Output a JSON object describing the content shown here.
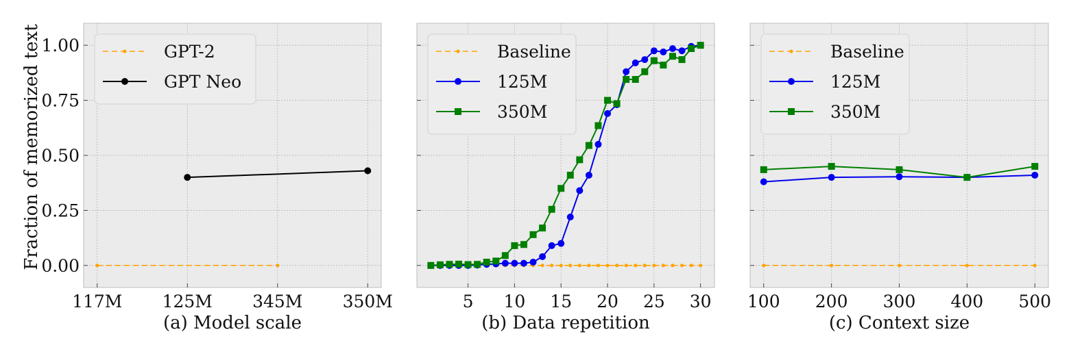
{
  "figure": {
    "ylabel": "Fraction of memorized text",
    "yticks": [
      "1.00",
      "0.75",
      "0.50",
      "0.25",
      "0.00"
    ],
    "ytick_values": [
      1.0,
      0.75,
      0.5,
      0.25,
      0.0
    ],
    "ylim": [
      -0.1,
      1.1
    ]
  },
  "chart_data": [
    {
      "type": "line",
      "title": "(a) Model scale",
      "xlabel": "(a) Model scale",
      "ylabel": "Fraction of memorized text",
      "categories": [
        "117M",
        "125M",
        "345M",
        "350M"
      ],
      "ylim": [
        -0.1,
        1.1
      ],
      "grid": true,
      "legend_position": "top-left",
      "series": [
        {
          "name": "GPT-2",
          "color": "#FFA500",
          "style": "dashed",
          "marker": "dot",
          "x": [
            "117M",
            "345M"
          ],
          "values": [
            0.0,
            0.0
          ]
        },
        {
          "name": "GPT Neo",
          "color": "#000000",
          "style": "solid",
          "marker": "circle",
          "x": [
            "125M",
            "350M"
          ],
          "values": [
            0.4,
            0.43
          ]
        }
      ]
    },
    {
      "type": "line",
      "title": "(b) Data repetition",
      "xlabel": "(b) Data repetition",
      "xticks": [
        "5",
        "10",
        "15",
        "20",
        "25",
        "30"
      ],
      "xtick_values": [
        5,
        10,
        15,
        20,
        25,
        30
      ],
      "xlim": [
        -0.5,
        31.5
      ],
      "ylim": [
        -0.1,
        1.1
      ],
      "grid": true,
      "legend_position": "top-left",
      "x": [
        1,
        2,
        3,
        4,
        5,
        6,
        7,
        8,
        9,
        10,
        11,
        12,
        13,
        14,
        15,
        16,
        17,
        18,
        19,
        20,
        21,
        22,
        23,
        24,
        25,
        26,
        27,
        28,
        29,
        30
      ],
      "series": [
        {
          "name": "Baseline",
          "color": "#FFA500",
          "style": "dashed",
          "marker": "dot",
          "values": [
            0,
            0,
            0,
            0,
            0,
            0,
            0,
            0,
            0,
            0,
            0,
            0,
            0,
            0,
            0,
            0,
            0,
            0,
            0,
            0,
            0,
            0,
            0,
            0,
            0,
            0,
            0,
            0,
            0,
            0
          ]
        },
        {
          "name": "125M",
          "color": "#0000EE",
          "style": "solid",
          "marker": "circle",
          "values": [
            0.0,
            0.0,
            0.0,
            0.0,
            0.0,
            0.002,
            0.005,
            0.007,
            0.01,
            0.01,
            0.01,
            0.015,
            0.04,
            0.09,
            0.1,
            0.22,
            0.34,
            0.41,
            0.55,
            0.69,
            0.73,
            0.88,
            0.92,
            0.935,
            0.975,
            0.97,
            0.985,
            0.975,
            0.995,
            1.0
          ]
        },
        {
          "name": "350M",
          "color": "#007F00",
          "style": "solid",
          "marker": "square",
          "values": [
            0.0,
            0.003,
            0.005,
            0.006,
            0.004,
            0.005,
            0.015,
            0.02,
            0.045,
            0.09,
            0.095,
            0.14,
            0.17,
            0.255,
            0.35,
            0.41,
            0.48,
            0.545,
            0.635,
            0.75,
            0.735,
            0.845,
            0.845,
            0.88,
            0.93,
            0.91,
            0.95,
            0.935,
            0.985,
            1.0
          ]
        }
      ]
    },
    {
      "type": "line",
      "title": "(c) Context size",
      "xlabel": "(c) Context size",
      "xticks": [
        "100",
        "200",
        "300",
        "400",
        "500"
      ],
      "xtick_values": [
        100,
        200,
        300,
        400,
        500
      ],
      "xlim": [
        80,
        520
      ],
      "ylim": [
        -0.1,
        1.1
      ],
      "grid": true,
      "legend_position": "top-left",
      "x": [
        100,
        200,
        300,
        400,
        500
      ],
      "series": [
        {
          "name": "Baseline",
          "color": "#FFA500",
          "style": "dashed",
          "marker": "dot",
          "values": [
            0,
            0,
            0,
            0,
            0
          ]
        },
        {
          "name": "125M",
          "color": "#0000EE",
          "style": "solid",
          "marker": "circle",
          "values": [
            0.38,
            0.4,
            0.403,
            0.4,
            0.41
          ]
        },
        {
          "name": "350M",
          "color": "#007F00",
          "style": "solid",
          "marker": "square",
          "values": [
            0.435,
            0.45,
            0.435,
            0.4,
            0.45
          ]
        }
      ]
    }
  ]
}
